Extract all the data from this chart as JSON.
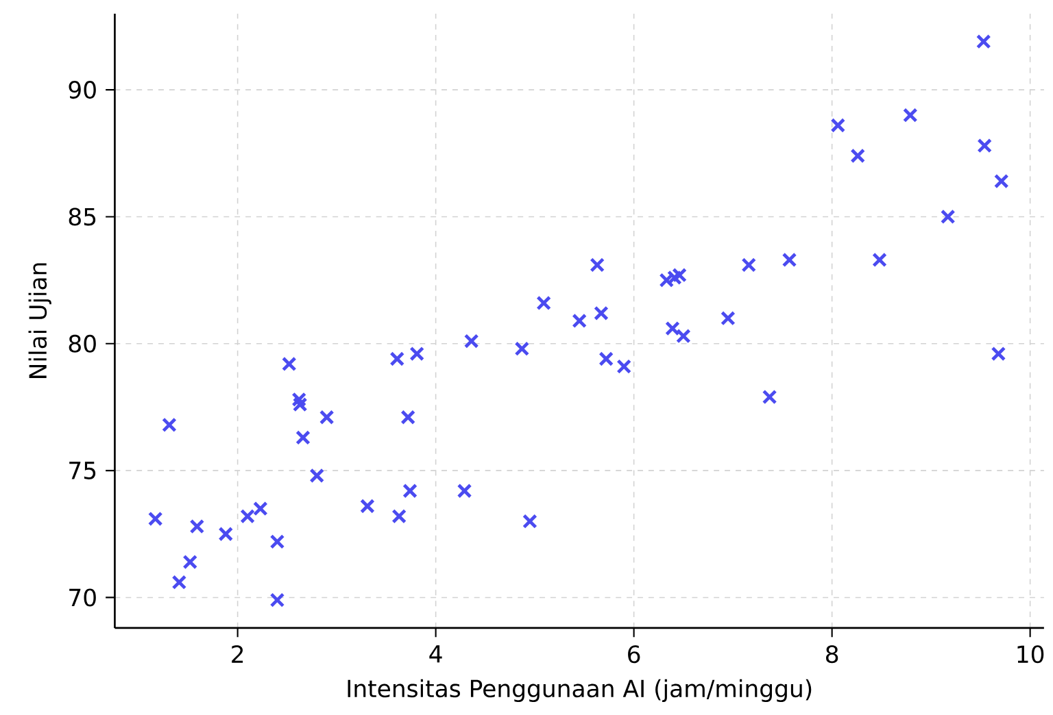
{
  "chart_data": {
    "type": "scatter",
    "xlabel": "Intensitas Penggunaan AI (jam/minggu)",
    "ylabel": "Nilai Ujian",
    "x": [
      1.17,
      1.31,
      1.41,
      1.52,
      1.59,
      1.88,
      2.1,
      2.23,
      2.4,
      2.4,
      2.52,
      2.62,
      2.63,
      2.66,
      2.8,
      2.9,
      3.31,
      3.61,
      3.63,
      3.72,
      3.74,
      3.81,
      4.29,
      4.36,
      4.87,
      4.95,
      5.09,
      5.45,
      5.63,
      5.67,
      5.72,
      5.9,
      6.33,
      6.39,
      6.41,
      6.46,
      6.5,
      6.95,
      7.16,
      7.37,
      7.57,
      8.06,
      8.26,
      8.48,
      8.79,
      9.17,
      9.53,
      9.54,
      9.71,
      9.68
    ],
    "values": [
      73.1,
      76.8,
      70.6,
      71.4,
      72.8,
      72.5,
      73.2,
      73.5,
      72.2,
      69.9,
      79.2,
      77.8,
      77.6,
      76.3,
      74.8,
      77.1,
      73.6,
      79.4,
      73.2,
      77.1,
      74.2,
      79.6,
      74.2,
      80.1,
      79.8,
      73.0,
      81.6,
      80.9,
      83.1,
      81.2,
      79.4,
      79.1,
      82.5,
      80.6,
      82.6,
      82.7,
      80.3,
      81.0,
      83.1,
      77.9,
      83.3,
      88.6,
      87.4,
      83.3,
      89.0,
      85.0,
      91.9,
      87.8,
      86.4,
      79.6
    ],
    "color": "#4b4bf0",
    "marker": "cross",
    "grid": true,
    "xlim": [
      0.76,
      10.14
    ],
    "ylim": [
      68.8,
      93.0
    ],
    "xticks": [
      2,
      4,
      6,
      8,
      10
    ],
    "yticks": [
      70,
      75,
      80,
      85,
      90
    ]
  }
}
